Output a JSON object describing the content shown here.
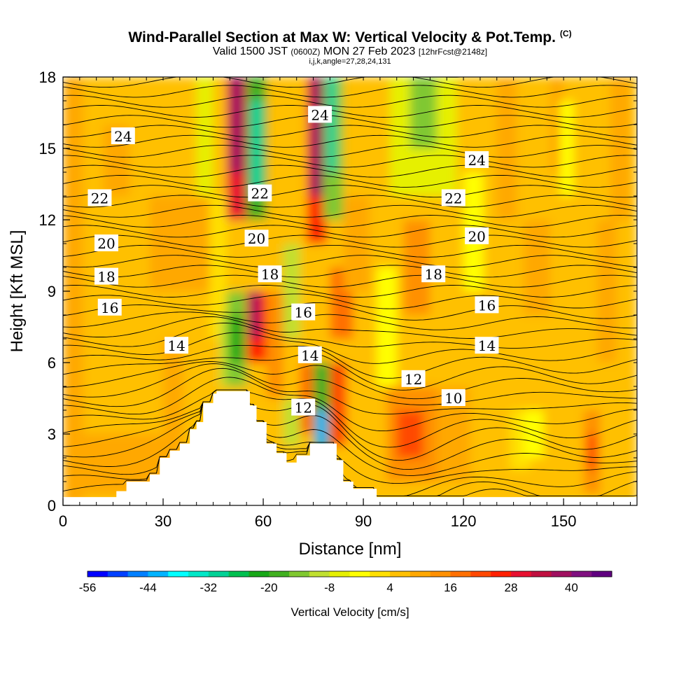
{
  "header": {
    "title": "Wind-Parallel Section at Max W: Vertical Velocity & Pot.Temp.",
    "copyright": "(C)",
    "subtitle_a": "Valid 1500 JST",
    "subtitle_b": "(0600Z)",
    "subtitle_c": "MON 27 Feb 2023",
    "subtitle_d": "[12hrFcst@2148z]",
    "grid_info": "i,j,k,angle=27,28,24,131"
  },
  "chart_data": {
    "type": "heatmap",
    "title": "Wind-Parallel Section at Max W: Vertical Velocity & Pot.Temp.",
    "xlabel": "Distance [nm]",
    "ylabel": "Height [Kft MSL]",
    "xlim": [
      0,
      172
    ],
    "ylim": [
      0,
      18
    ],
    "xticks": [
      "0",
      "30",
      "60",
      "90",
      "120",
      "150"
    ],
    "yticks": [
      "0",
      "3",
      "6",
      "9",
      "12",
      "15",
      "18"
    ],
    "colorbar": {
      "label": "Vertical Velocity [cm/s]",
      "levels": [
        -56,
        -52,
        -48,
        -44,
        -40,
        -36,
        -32,
        -28,
        -24,
        -20,
        -16,
        -12,
        -8,
        -4,
        0,
        4,
        8,
        12,
        16,
        20,
        24,
        28,
        32,
        36,
        40,
        44
      ],
      "tick_labels": [
        "-56",
        "-44",
        "-32",
        "-20",
        "-8",
        "4",
        "16",
        "28",
        "40"
      ],
      "colors": [
        "#0000ff",
        "#0040ff",
        "#0080ff",
        "#00b4ff",
        "#00ffff",
        "#00e8c8",
        "#00d296",
        "#00c050",
        "#18a818",
        "#40b020",
        "#80c830",
        "#c0e030",
        "#e6f000",
        "#ffff00",
        "#ffe000",
        "#ffc000",
        "#ffa800",
        "#ff9000",
        "#ff7000",
        "#ff4800",
        "#ff2000",
        "#e81030",
        "#c01040",
        "#a01060",
        "#801080",
        "#600080"
      ]
    },
    "isentrope_labels": [
      "24",
      "22",
      "20",
      "18",
      "16",
      "14",
      "12",
      "10"
    ],
    "contour_label_positions": [
      {
        "text": "24",
        "x": 18,
        "y": 15.5
      },
      {
        "text": "22",
        "x": 11,
        "y": 12.9
      },
      {
        "text": "20",
        "x": 13,
        "y": 11.0
      },
      {
        "text": "18",
        "x": 13,
        "y": 9.6
      },
      {
        "text": "16",
        "x": 14,
        "y": 8.3
      },
      {
        "text": "14",
        "x": 34,
        "y": 6.7
      },
      {
        "text": "24",
        "x": 77,
        "y": 16.4
      },
      {
        "text": "22",
        "x": 59,
        "y": 13.1
      },
      {
        "text": "20",
        "x": 58,
        "y": 11.2
      },
      {
        "text": "18",
        "x": 62,
        "y": 9.7
      },
      {
        "text": "16",
        "x": 72,
        "y": 8.1
      },
      {
        "text": "14",
        "x": 74,
        "y": 6.3
      },
      {
        "text": "12",
        "x": 72,
        "y": 4.1
      },
      {
        "text": "12",
        "x": 105,
        "y": 5.3
      },
      {
        "text": "10",
        "x": 117,
        "y": 4.5
      },
      {
        "text": "18",
        "x": 111,
        "y": 9.7
      },
      {
        "text": "16",
        "x": 127,
        "y": 8.4
      },
      {
        "text": "14",
        "x": 127,
        "y": 6.7
      },
      {
        "text": "20",
        "x": 124,
        "y": 11.3
      },
      {
        "text": "22",
        "x": 117,
        "y": 12.9
      },
      {
        "text": "24",
        "x": 124,
        "y": 14.5
      }
    ],
    "cells": [
      {
        "x0": 0,
        "x1": 172,
        "y0": 0,
        "y1": 18,
        "value": 6
      },
      {
        "x0": 0,
        "x1": 6,
        "y0": 0,
        "y1": 18,
        "value": 8
      },
      {
        "x0": 30,
        "x1": 36,
        "y0": 0,
        "y1": 7,
        "value": 8
      },
      {
        "x0": 12,
        "x1": 20,
        "y0": 13,
        "y1": 16,
        "value": 8
      },
      {
        "x0": 0,
        "x1": 30,
        "y0": 0.5,
        "y1": 3,
        "value": 10
      },
      {
        "x0": 26,
        "x1": 44,
        "y0": 9,
        "y1": 13,
        "value": 8
      },
      {
        "x0": 40,
        "x1": 45,
        "y0": 13,
        "y1": 18,
        "value": -8
      },
      {
        "x0": 44,
        "x1": 49,
        "y0": 7,
        "y1": 13,
        "value": 2
      },
      {
        "x0": 47,
        "x1": 51,
        "y0": 5,
        "y1": 8,
        "value": -12
      },
      {
        "x0": 49,
        "x1": 55,
        "y0": 12,
        "y1": 18,
        "value": 28
      },
      {
        "x0": 50,
        "x1": 54,
        "y0": 14,
        "y1": 18,
        "value": 36
      },
      {
        "x0": 55,
        "x1": 61,
        "y0": 12,
        "y1": 18,
        "value": -20
      },
      {
        "x0": 56,
        "x1": 60,
        "y0": 13,
        "y1": 17,
        "value": -32
      },
      {
        "x0": 49,
        "x1": 55,
        "y0": 5,
        "y1": 9,
        "value": -16
      },
      {
        "x0": 50,
        "x1": 54,
        "y0": 6,
        "y1": 8,
        "value": -24
      },
      {
        "x0": 55,
        "x1": 61,
        "y0": 6,
        "y1": 9,
        "value": 24
      },
      {
        "x0": 56,
        "x1": 59,
        "y0": 7,
        "y1": 9,
        "value": 36
      },
      {
        "x0": 61,
        "x1": 66,
        "y0": 4.5,
        "y1": 9,
        "value": 12
      },
      {
        "x0": 66,
        "x1": 71,
        "y0": 7,
        "y1": 11,
        "value": -12
      },
      {
        "x0": 66,
        "x1": 71,
        "y0": 2.5,
        "y1": 4.5,
        "value": -12
      },
      {
        "x0": 71,
        "x1": 75,
        "y0": 3,
        "y1": 6,
        "value": 16
      },
      {
        "x0": 73,
        "x1": 79,
        "y0": 11,
        "y1": 18,
        "value": 24
      },
      {
        "x0": 74,
        "x1": 78,
        "y0": 13,
        "y1": 18,
        "value": 36
      },
      {
        "x0": 78,
        "x1": 84,
        "y0": 12,
        "y1": 18,
        "value": -16
      },
      {
        "x0": 79,
        "x1": 82,
        "y0": 14,
        "y1": 18,
        "value": -32
      },
      {
        "x0": 75,
        "x1": 80,
        "y0": 2,
        "y1": 6,
        "value": -20
      },
      {
        "x0": 76,
        "x1": 79,
        "y0": 2.5,
        "y1": 4,
        "value": -44
      },
      {
        "x0": 80,
        "x1": 85,
        "y0": 2.5,
        "y1": 6,
        "value": 20
      },
      {
        "x0": 80,
        "x1": 87,
        "y0": 7,
        "y1": 10,
        "value": 16
      },
      {
        "x0": 84,
        "x1": 92,
        "y0": 9,
        "y1": 13,
        "value": 10
      },
      {
        "x0": 94,
        "x1": 100,
        "y0": 5,
        "y1": 10,
        "value": -4
      },
      {
        "x0": 98,
        "x1": 118,
        "y0": 13,
        "y1": 18,
        "value": -8
      },
      {
        "x0": 104,
        "x1": 112,
        "y0": 15,
        "y1": 18,
        "value": -14
      },
      {
        "x0": 102,
        "x1": 110,
        "y0": 8,
        "y1": 12,
        "value": 12
      },
      {
        "x0": 97,
        "x1": 112,
        "y0": 1,
        "y1": 5,
        "value": 12
      },
      {
        "x0": 100,
        "x1": 108,
        "y0": 2,
        "y1": 4,
        "value": 20
      },
      {
        "x0": 112,
        "x1": 122,
        "y0": 1,
        "y1": 5,
        "value": 10
      },
      {
        "x0": 120,
        "x1": 126,
        "y0": 9,
        "y1": 14,
        "value": -4
      },
      {
        "x0": 130,
        "x1": 136,
        "y0": 12,
        "y1": 18,
        "value": 10
      },
      {
        "x0": 134,
        "x1": 140,
        "y0": 1.5,
        "y1": 4,
        "value": 2
      },
      {
        "x0": 138,
        "x1": 144,
        "y0": 2,
        "y1": 4,
        "value": -4
      },
      {
        "x0": 138,
        "x1": 146,
        "y0": 8,
        "y1": 12,
        "value": 10
      },
      {
        "x0": 146,
        "x1": 150,
        "y0": 14,
        "y1": 18,
        "value": 10
      },
      {
        "x0": 149,
        "x1": 153,
        "y0": 13,
        "y1": 17,
        "value": -4
      },
      {
        "x0": 150,
        "x1": 154,
        "y0": 5,
        "y1": 10,
        "value": 4
      },
      {
        "x0": 156,
        "x1": 161,
        "y0": 0.5,
        "y1": 4,
        "value": 12
      },
      {
        "x0": 157,
        "x1": 160,
        "y0": 1.5,
        "y1": 3,
        "value": 20
      },
      {
        "x0": 160,
        "x1": 166,
        "y0": 6,
        "y1": 12,
        "value": 10
      },
      {
        "x0": 164,
        "x1": 170,
        "y0": 12,
        "y1": 18,
        "value": 8
      }
    ],
    "terrain_height": [
      {
        "x": 0,
        "h": 0.35
      },
      {
        "x": 15,
        "h": 0.35
      },
      {
        "x": 16,
        "h": 0.6
      },
      {
        "x": 19,
        "h": 1.0
      },
      {
        "x": 26,
        "h": 1.3
      },
      {
        "x": 29,
        "h": 2.0
      },
      {
        "x": 32,
        "h": 2.3
      },
      {
        "x": 35,
        "h": 2.6
      },
      {
        "x": 38,
        "h": 3.2
      },
      {
        "x": 40,
        "h": 3.5
      },
      {
        "x": 42,
        "h": 4.3
      },
      {
        "x": 45,
        "h": 4.7
      },
      {
        "x": 46,
        "h": 4.8
      },
      {
        "x": 54,
        "h": 4.8
      },
      {
        "x": 56,
        "h": 4.2
      },
      {
        "x": 58,
        "h": 3.5
      },
      {
        "x": 61,
        "h": 2.6
      },
      {
        "x": 64,
        "h": 2.2
      },
      {
        "x": 67,
        "h": 1.8
      },
      {
        "x": 70,
        "h": 2.1
      },
      {
        "x": 74,
        "h": 2.6
      },
      {
        "x": 78,
        "h": 2.6
      },
      {
        "x": 82,
        "h": 1.9
      },
      {
        "x": 84,
        "h": 1.0
      },
      {
        "x": 87,
        "h": 0.7
      },
      {
        "x": 94,
        "h": 0.35
      },
      {
        "x": 172,
        "h": 0.35
      }
    ]
  }
}
